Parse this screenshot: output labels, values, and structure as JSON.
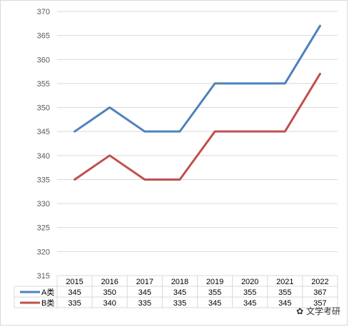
{
  "chart_data": {
    "type": "line",
    "categories": [
      "2015",
      "2016",
      "2017",
      "2018",
      "2019",
      "2020",
      "2021",
      "2022"
    ],
    "ylim": [
      315,
      370
    ],
    "yticks": [
      315,
      320,
      325,
      330,
      335,
      340,
      345,
      350,
      355,
      360,
      365,
      370
    ],
    "grid": true,
    "legend": "data-table",
    "series": [
      {
        "name": "A类",
        "color": "#4f81bd",
        "values": [
          345,
          350,
          345,
          345,
          355,
          355,
          355,
          367
        ]
      },
      {
        "name": "B类",
        "color": "#c0504d",
        "values": [
          335,
          340,
          335,
          335,
          345,
          345,
          345,
          357
        ]
      }
    ]
  },
  "watermark": {
    "icon": "wechat-icon",
    "text": "文学考研"
  }
}
